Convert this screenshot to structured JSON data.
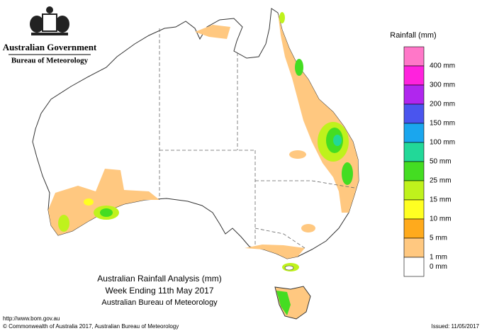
{
  "header": {
    "government": "Australian Government",
    "agency": "Bureau of Meteorology"
  },
  "legend": {
    "title": "Rainfall (mm)",
    "items": [
      {
        "label": null,
        "color": "#ff77c8"
      },
      {
        "label": "400 mm",
        "color": "#ff22dd"
      },
      {
        "label": "300 mm",
        "color": "#b026ee"
      },
      {
        "label": "200 mm",
        "color": "#4a55ee"
      },
      {
        "label": "150 mm",
        "color": "#1aa6ee"
      },
      {
        "label": "100 mm",
        "color": "#22d898"
      },
      {
        "label": "50 mm",
        "color": "#44dd22"
      },
      {
        "label": "25 mm",
        "color": "#bff21c"
      },
      {
        "label": "15 mm",
        "color": "#ffff22"
      },
      {
        "label": "10 mm",
        "color": "#ffaa1c"
      },
      {
        "label": "5 mm",
        "color": "#ffc880"
      },
      {
        "label": "1 mm",
        "color": "#ffffff"
      },
      {
        "label": "0 mm",
        "color": null
      }
    ]
  },
  "title": {
    "line1": "Australian Rainfall Analysis (mm)",
    "line2": "Week Ending 11th May 2017",
    "line3": "Australian Bureau of Meteorology"
  },
  "footer": {
    "url": "http://www.bom.gov.au",
    "copyright": "© Commonwealth of Australia 2017, Australian Bureau of Meteorology",
    "issued": "Issued: 11/05/2017"
  }
}
